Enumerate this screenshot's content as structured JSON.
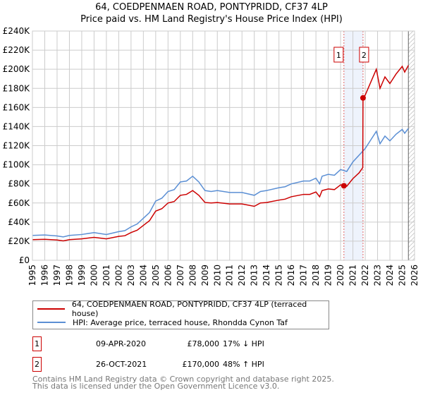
{
  "chart_data": {
    "type": "line",
    "title": "64, COEDPENMAEN ROAD, PONTYPRIDD, CF37 4LP",
    "subtitle": "Price paid vs. HM Land Registry's House Price Index (HPI)",
    "xlim": [
      1995,
      2026
    ],
    "ylim": [
      0,
      240000
    ],
    "y_ticks": [
      "£0",
      "£20K",
      "£40K",
      "£60K",
      "£80K",
      "£100K",
      "£120K",
      "£140K",
      "£160K",
      "£180K",
      "£200K",
      "£220K",
      "£240K"
    ],
    "x_ticks": [
      "1995",
      "1996",
      "1997",
      "1998",
      "1999",
      "2000",
      "2001",
      "2002",
      "2003",
      "2004",
      "2005",
      "2006",
      "2007",
      "2008",
      "2009",
      "2010",
      "2011",
      "2012",
      "2013",
      "2014",
      "2015",
      "2016",
      "2017",
      "2018",
      "2019",
      "2020",
      "2021",
      "2022",
      "2023",
      "2024",
      "2025",
      "2026"
    ],
    "grid": true,
    "shaded_range": [
      2020.27,
      2021.82
    ],
    "forecast_from": 2025.5,
    "series": [
      {
        "name": "64, COEDPENMAEN ROAD, PONTYPRIDD, CF37 4LP (terraced house)",
        "color": "#cc0000",
        "x": [
          1995,
          1996,
          1997,
          1997.5,
          1998,
          1999,
          2000,
          2001,
          2002,
          2002.5,
          2003,
          2003.5,
          2004,
          2004.5,
          2005,
          2005.5,
          2006,
          2006.5,
          2007,
          2007.5,
          2008,
          2008.5,
          2009,
          2009.5,
          2010,
          2011,
          2012,
          2013,
          2013.5,
          2014,
          2015,
          2015.5,
          2016,
          2017,
          2017.5,
          2018,
          2018.3,
          2018.5,
          2019,
          2019.5,
          2020,
          2020.27,
          2020.5,
          2021,
          2021.5,
          2021.8,
          2021.82,
          2022,
          2022.5,
          2022.9,
          2023.2,
          2023.6,
          2024,
          2024.5,
          2025,
          2025.2,
          2025.5
        ],
        "y": [
          21600,
          22000,
          21200,
          20300,
          21600,
          22400,
          24000,
          22400,
          25000,
          25700,
          29000,
          31500,
          36500,
          41500,
          51500,
          54000,
          60000,
          61500,
          68000,
          69000,
          73000,
          68000,
          60500,
          60000,
          60500,
          59000,
          59000,
          56500,
          60000,
          60500,
          63000,
          64000,
          66500,
          69000,
          69000,
          71500,
          66500,
          73000,
          74700,
          74000,
          79000,
          78000,
          77500,
          85500,
          91500,
          97000,
          170000,
          173000,
          188000,
          200000,
          180000,
          192000,
          185000,
          195000,
          203000,
          197000,
          204000
        ]
      },
      {
        "name": "HPI: Average price, terraced house, Rhondda Cynon Taf",
        "color": "#5b8fd4",
        "x": [
          1995,
          1996,
          1997,
          1997.5,
          1998,
          1999,
          2000,
          2001,
          2002,
          2002.5,
          2003,
          2003.5,
          2004,
          2004.5,
          2005,
          2005.5,
          2006,
          2006.5,
          2007,
          2007.5,
          2008,
          2008.5,
          2009,
          2009.5,
          2010,
          2011,
          2012,
          2013,
          2013.5,
          2014,
          2015,
          2015.5,
          2016,
          2017,
          2017.5,
          2018,
          2018.3,
          2018.5,
          2019,
          2019.5,
          2020,
          2020.5,
          2021,
          2021.5,
          2022,
          2022.5,
          2022.9,
          2023.2,
          2023.6,
          2024,
          2024.5,
          2025,
          2025.2,
          2025.5
        ],
        "y": [
          26000,
          26500,
          25500,
          24500,
          26000,
          27000,
          29000,
          27000,
          30000,
          31000,
          35000,
          38000,
          44000,
          50000,
          62000,
          65000,
          72000,
          74000,
          82000,
          83000,
          88000,
          82000,
          73000,
          72000,
          73000,
          71000,
          71000,
          68000,
          72000,
          73000,
          76000,
          77000,
          80000,
          83000,
          83000,
          86000,
          80000,
          88000,
          90000,
          89000,
          95000,
          93000,
          103000,
          110000,
          117000,
          127000,
          135000,
          122000,
          130000,
          125000,
          132000,
          137000,
          133000,
          138000
        ]
      }
    ],
    "sales": [
      {
        "label": "1",
        "x": 2020.27,
        "y": 78000
      },
      {
        "label": "2",
        "x": 2021.82,
        "y": 170000
      }
    ]
  },
  "transactions": [
    {
      "num": "1",
      "date": "09-APR-2020",
      "price": "£78,000",
      "hpi": "17% ↓ HPI"
    },
    {
      "num": "2",
      "date": "26-OCT-2021",
      "price": "£170,000",
      "hpi": "48% ↑ HPI"
    }
  ],
  "footer": [
    "Contains HM Land Registry data © Crown copyright and database right 2025.",
    "This data is licensed under the Open Government Licence v3.0."
  ]
}
